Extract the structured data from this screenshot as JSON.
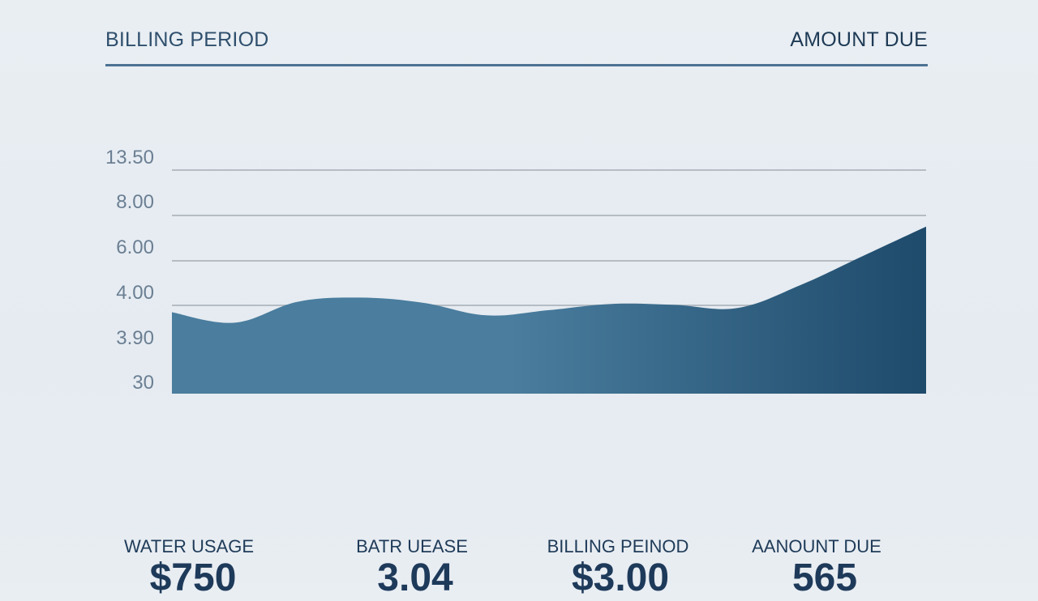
{
  "header": {
    "left_title": "BILLING PERIOD",
    "right_title": "AMOUNT DUE"
  },
  "chart_data": {
    "type": "area",
    "y_tick_labels": [
      "13.50",
      "8.00",
      "6.00",
      "4.00",
      "3.90",
      "30"
    ],
    "series": [
      {
        "values": [
          3.9,
          3.4,
          4.4,
          4.6,
          4.35,
          3.75,
          4.0,
          4.3,
          4.25,
          4.1,
          5.2,
          6.6,
          8.0
        ]
      }
    ],
    "ylim": [
      0,
      13.5
    ],
    "grid": true,
    "colors": {
      "fill_start": "#4a7d9e",
      "fill_end": "#1e4a6b",
      "grid": "#b5bcc4"
    }
  },
  "stats": [
    {
      "label": "WATER USAGE",
      "value": "$750"
    },
    {
      "label": "BATR UEASE",
      "value": "3.04"
    },
    {
      "label": "BILLING PEINOD",
      "value": "$3.00"
    },
    {
      "label": "AANOUNT DUE",
      "value": "565"
    }
  ]
}
